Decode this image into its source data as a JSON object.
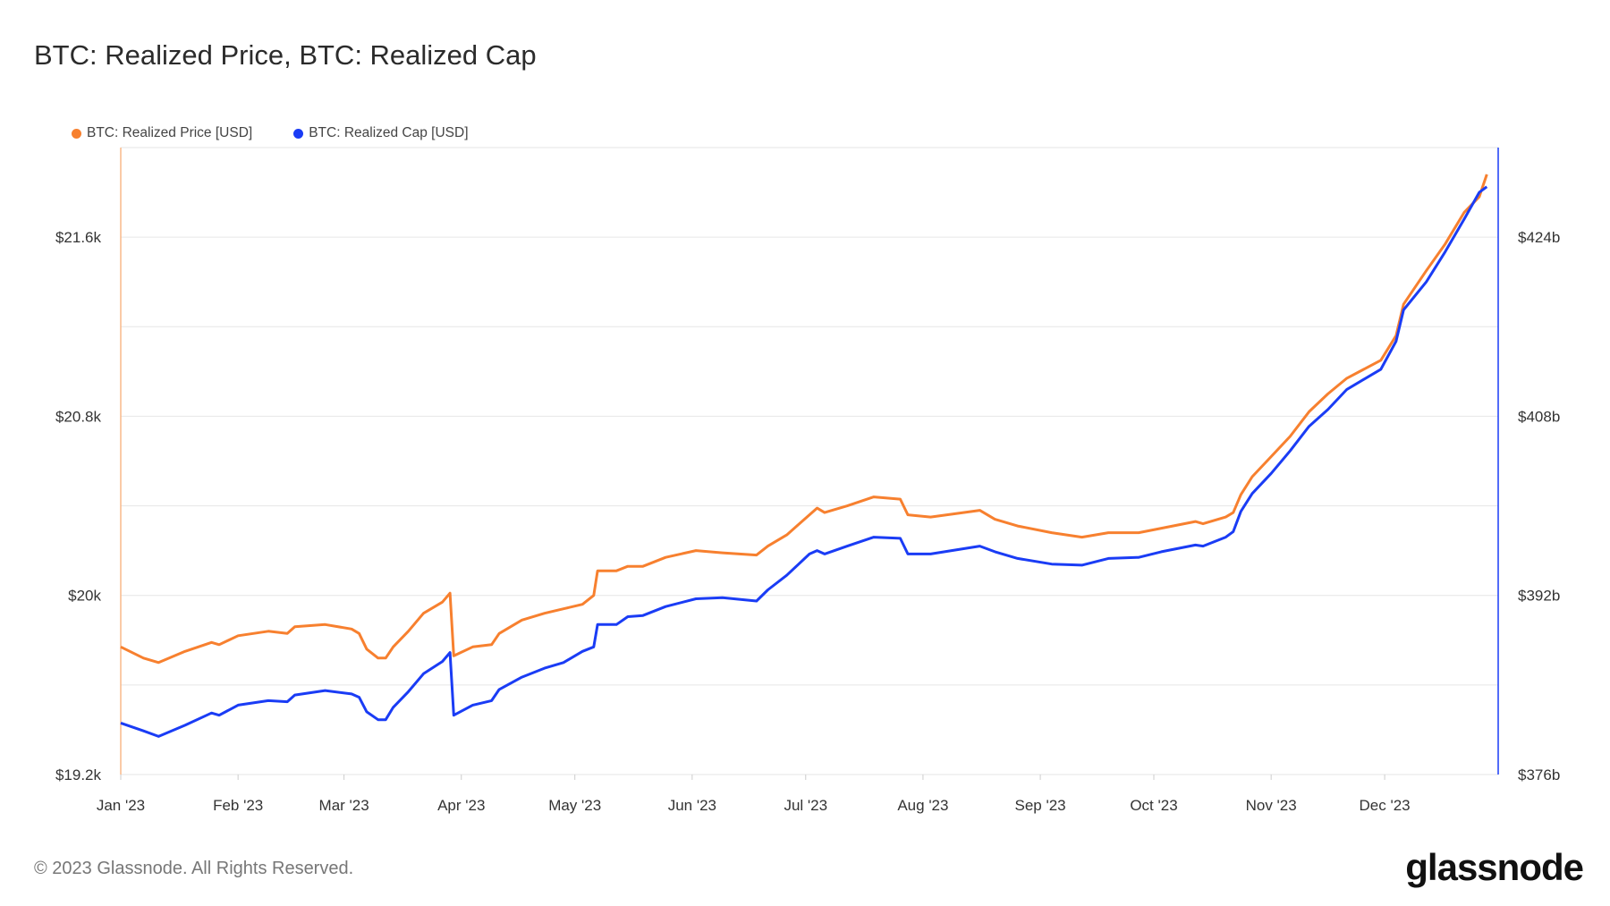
{
  "title": "BTC: Realized Price, BTC: Realized Cap",
  "footer": {
    "copyright": "© 2023 Glassnode. All Rights Reserved.",
    "logo": "glassnode"
  },
  "colors": {
    "price": "#f7802f",
    "cap": "#1a3cf5",
    "grid": "#e6e6e6"
  },
  "chart_data": {
    "type": "line",
    "title": "BTC: Realized Price, BTC: Realized Cap",
    "xlim": [
      "2023-01-01",
      "2023-12-31"
    ],
    "x_ticks": [
      "Jan '23",
      "Feb '23",
      "Mar '23",
      "Apr '23",
      "May '23",
      "Jun '23",
      "Jul '23",
      "Aug '23",
      "Sep '23",
      "Oct '23",
      "Nov '23",
      "Dec '23"
    ],
    "y_left": {
      "ylim": [
        19.2,
        22.0
      ],
      "ticks": [
        19.2,
        20.0,
        20.8,
        21.6
      ],
      "tick_labels": [
        "$19.2k",
        "$20k",
        "$20.8k",
        "$21.6k"
      ]
    },
    "y_right": {
      "ylim": [
        376,
        432
      ],
      "ticks": [
        376,
        392,
        408,
        424
      ],
      "tick_labels": [
        "$376b",
        "$392b",
        "$408b",
        "$424b"
      ]
    },
    "grid": true,
    "legend_position": "top-left",
    "x": [
      "2023-01-01",
      "2023-01-07",
      "2023-01-11",
      "2023-01-18",
      "2023-01-25",
      "2023-01-27",
      "2023-02-01",
      "2023-02-09",
      "2023-02-14",
      "2023-02-16",
      "2023-02-24",
      "2023-03-03",
      "2023-03-05",
      "2023-03-07",
      "2023-03-10",
      "2023-03-12",
      "2023-03-14",
      "2023-03-18",
      "2023-03-22",
      "2023-03-27",
      "2023-03-29",
      "2023-03-30",
      "2023-04-04",
      "2023-04-09",
      "2023-04-11",
      "2023-04-17",
      "2023-04-23",
      "2023-04-28",
      "2023-05-03",
      "2023-05-06",
      "2023-05-07",
      "2023-05-12",
      "2023-05-15",
      "2023-05-19",
      "2023-05-25",
      "2023-06-02",
      "2023-06-09",
      "2023-06-18",
      "2023-06-21",
      "2023-06-26",
      "2023-07-02",
      "2023-07-04",
      "2023-07-06",
      "2023-07-12",
      "2023-07-19",
      "2023-07-26",
      "2023-07-28",
      "2023-08-03",
      "2023-08-16",
      "2023-08-20",
      "2023-08-26",
      "2023-09-04",
      "2023-09-12",
      "2023-09-19",
      "2023-09-27",
      "2023-10-03",
      "2023-10-12",
      "2023-10-14",
      "2023-10-20",
      "2023-10-22",
      "2023-10-24",
      "2023-10-27",
      "2023-11-01",
      "2023-11-06",
      "2023-11-11",
      "2023-11-16",
      "2023-11-21",
      "2023-11-30",
      "2023-12-04",
      "2023-12-06",
      "2023-12-12",
      "2023-12-17",
      "2023-12-22",
      "2023-12-26",
      "2023-12-28"
    ],
    "series": [
      {
        "name": "BTC: Realized Price [USD]",
        "axis": "left",
        "unit": "k USD",
        "values": [
          19.77,
          19.72,
          19.7,
          19.75,
          19.79,
          19.78,
          19.82,
          19.84,
          19.83,
          19.86,
          19.87,
          19.85,
          19.83,
          19.76,
          19.72,
          19.72,
          19.77,
          19.84,
          19.92,
          19.97,
          20.01,
          19.73,
          19.77,
          19.78,
          19.83,
          19.89,
          19.92,
          19.94,
          19.96,
          20.0,
          20.11,
          20.11,
          20.13,
          20.13,
          20.17,
          20.2,
          20.19,
          20.18,
          20.22,
          20.27,
          20.36,
          20.39,
          20.37,
          20.4,
          20.44,
          20.43,
          20.36,
          20.35,
          20.38,
          20.34,
          20.31,
          20.28,
          20.26,
          20.28,
          20.28,
          20.3,
          20.33,
          20.32,
          20.35,
          20.37,
          20.45,
          20.53,
          20.62,
          20.71,
          20.82,
          20.9,
          20.97,
          21.05,
          21.16,
          21.3,
          21.45,
          21.57,
          21.71,
          21.78,
          21.88
        ]
      },
      {
        "name": "BTC: Realized Cap [USD]",
        "axis": "right",
        "unit": "b USD",
        "values": [
          380.6,
          379.9,
          379.4,
          380.4,
          381.5,
          381.3,
          382.2,
          382.6,
          382.5,
          383.1,
          383.5,
          383.2,
          382.9,
          381.6,
          380.9,
          380.9,
          382.0,
          383.4,
          385.0,
          386.1,
          386.9,
          381.3,
          382.2,
          382.6,
          383.6,
          384.7,
          385.5,
          386.0,
          387.0,
          387.4,
          389.4,
          389.4,
          390.1,
          390.2,
          391.0,
          391.7,
          391.8,
          391.5,
          392.5,
          393.8,
          395.7,
          396.0,
          395.7,
          396.4,
          397.2,
          397.1,
          395.7,
          395.7,
          396.4,
          395.9,
          395.3,
          394.8,
          394.7,
          395.3,
          395.4,
          395.9,
          396.5,
          396.4,
          397.2,
          397.7,
          399.5,
          401.1,
          402.9,
          404.9,
          407.1,
          408.6,
          410.4,
          412.2,
          414.7,
          417.5,
          420.0,
          422.7,
          425.6,
          428.0,
          428.5
        ]
      }
    ]
  }
}
